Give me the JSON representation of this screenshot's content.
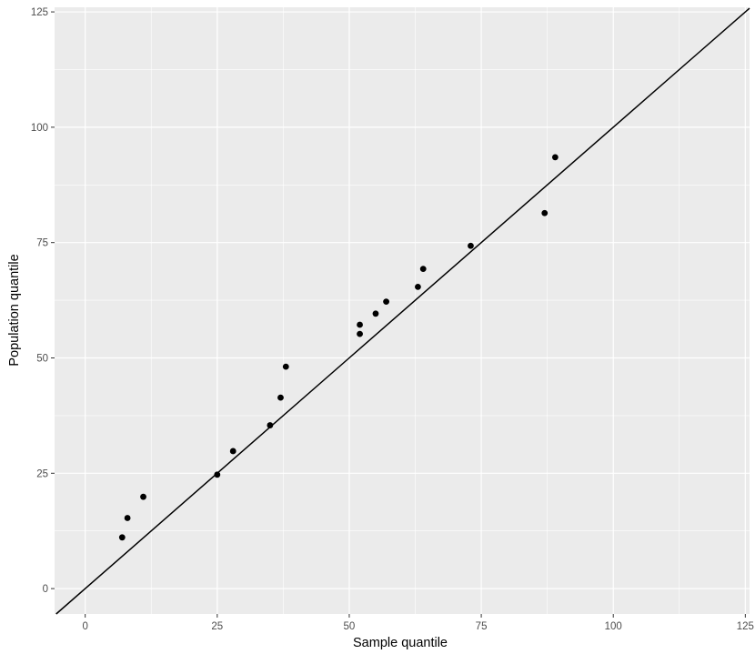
{
  "chart_data": {
    "type": "scatter",
    "title": "",
    "xlabel": "Sample quantile",
    "ylabel": "Population quantile",
    "xlim": [
      -5.8,
      125.8
    ],
    "ylim": [
      -5.5,
      126
    ],
    "xticks": [
      0,
      25,
      50,
      75,
      100,
      125
    ],
    "yticks": [
      0,
      25,
      50,
      75,
      100,
      125
    ],
    "grid": true,
    "panel_background": "#ebebeb",
    "grid_color": "#ffffff",
    "point_color": "#000000",
    "line_color": "#000000",
    "reference_line": {
      "intercept": 0,
      "slope": 1
    },
    "series": [
      {
        "points": [
          {
            "x": 7,
            "y": 11.1
          },
          {
            "x": 8,
            "y": 15.3
          },
          {
            "x": 11,
            "y": 19.9
          },
          {
            "x": 25,
            "y": 24.7
          },
          {
            "x": 28,
            "y": 29.8
          },
          {
            "x": 35,
            "y": 35.4
          },
          {
            "x": 37,
            "y": 41.4
          },
          {
            "x": 38,
            "y": 48.1
          },
          {
            "x": 52,
            "y": 55.2
          },
          {
            "x": 52,
            "y": 57.2
          },
          {
            "x": 55,
            "y": 59.6
          },
          {
            "x": 57,
            "y": 62.2
          },
          {
            "x": 63,
            "y": 65.4
          },
          {
            "x": 64,
            "y": 69.3
          },
          {
            "x": 73,
            "y": 74.3
          },
          {
            "x": 87,
            "y": 81.4
          },
          {
            "x": 89,
            "y": 93.5
          }
        ]
      }
    ]
  }
}
